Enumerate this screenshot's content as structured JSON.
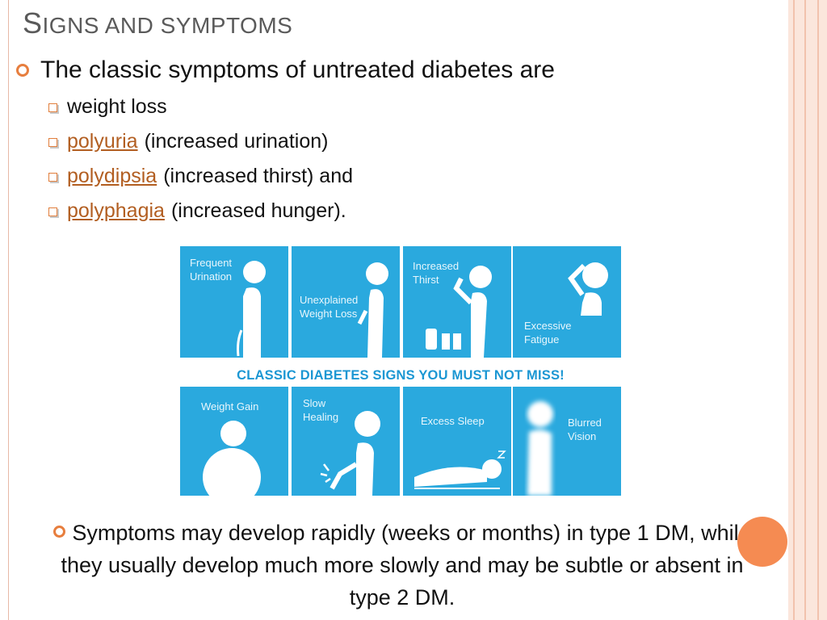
{
  "slide": {
    "title_first": "S",
    "title_rest": "IGNS AND SYMPTOMS",
    "intro": "The classic symptoms of untreated diabetes are",
    "symptoms": [
      {
        "link": "",
        "text": "weight loss"
      },
      {
        "link": "polyuria",
        "text": "(increased urination)"
      },
      {
        "link": "polydipsia",
        "text": "(increased thirst) and"
      },
      {
        "link": "polyphagia",
        "text": "(increased hunger)."
      }
    ],
    "note": "Symptoms may develop rapidly (weeks or months) in type 1 DM, while they usually develop much more slowly and may be subtle or absent in type 2 DM."
  },
  "infographic": {
    "banner": "CLASSIC DIABETES SIGNS YOU MUST NOT MISS!",
    "panels_top": [
      {
        "line1": "Frequent",
        "line2": "Urination"
      },
      {
        "line1": "Unexplained",
        "line2": "Weight Loss"
      },
      {
        "line1": "Increased",
        "line2": "Thirst"
      },
      {
        "line1": "Excessive",
        "line2": "Fatigue"
      }
    ],
    "panels_bottom": [
      {
        "line1": "Weight Gain",
        "line2": ""
      },
      {
        "line1": "Slow",
        "line2": "Healing"
      },
      {
        "line1": "Excess Sleep",
        "line2": ""
      },
      {
        "line1": "Blurred",
        "line2": "Vision"
      }
    ],
    "panel_color": "#2aa9de",
    "banner_color": "#1c97d3"
  },
  "colors": {
    "accent": "#e77e3e",
    "link": "#b25e21",
    "decor_circle": "#f58b52"
  }
}
